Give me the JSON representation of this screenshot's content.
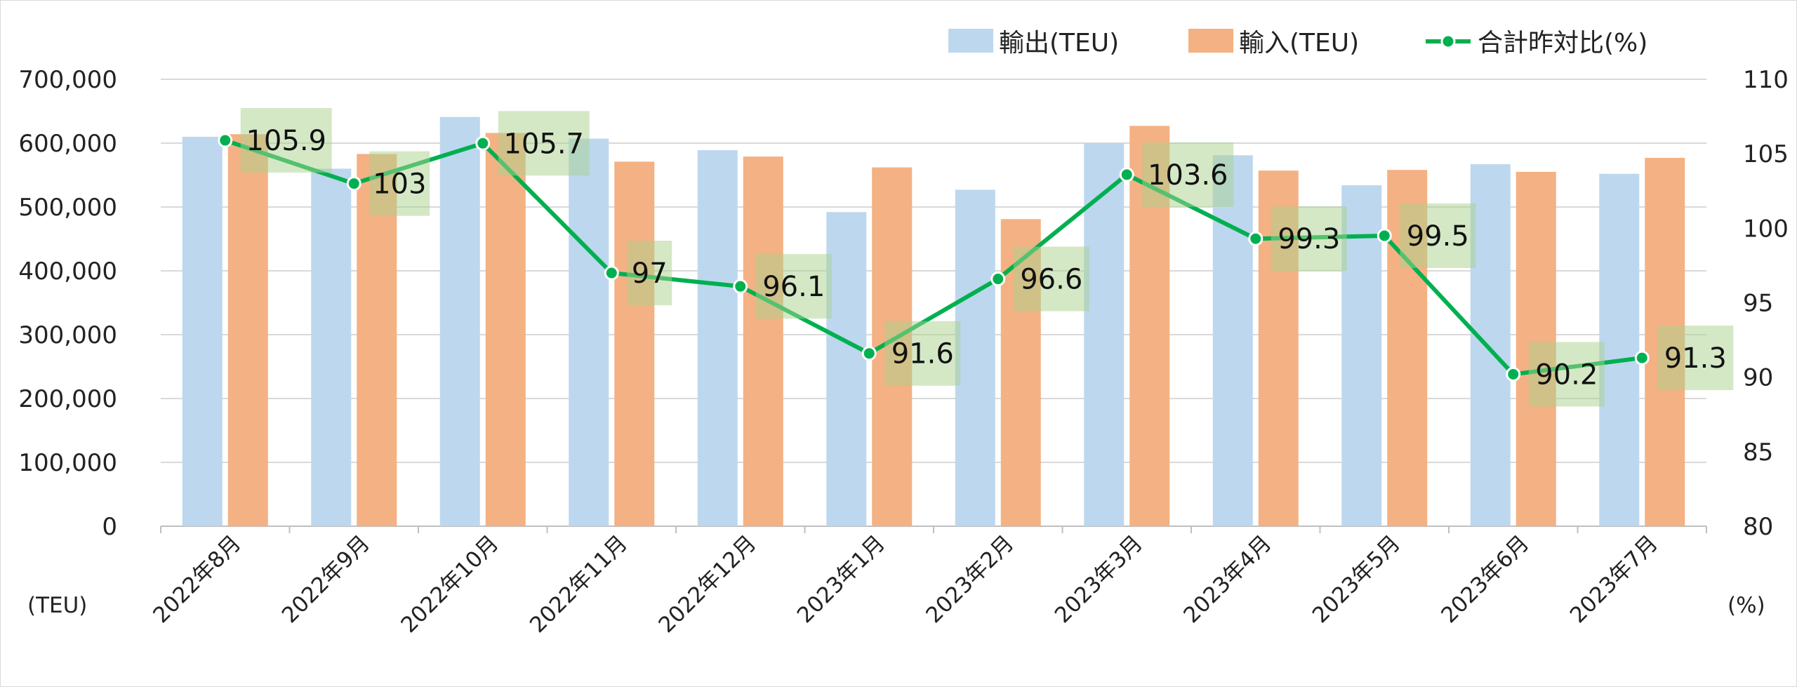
{
  "chart_data": {
    "type": "bar",
    "categories": [
      "2022年8月",
      "2022年9月",
      "2022年10月",
      "2022年11月",
      "2022年12月",
      "2023年1月",
      "2023年2月",
      "2023年3月",
      "2023年4月",
      "2023年5月",
      "2023年6月",
      "2023年7月"
    ],
    "series": [
      {
        "name": "輸出(TEU)",
        "type": "bar",
        "axis": "left",
        "color": "#bdd7ee",
        "values": [
          610000,
          560000,
          641000,
          607000,
          589000,
          492000,
          527000,
          600000,
          581000,
          534000,
          567000,
          552000
        ]
      },
      {
        "name": "輸入(TEU)",
        "type": "bar",
        "axis": "left",
        "color": "#f4b183",
        "values": [
          614000,
          583000,
          616000,
          571000,
          579000,
          562000,
          481000,
          627000,
          557000,
          558000,
          555000,
          577000
        ]
      },
      {
        "name": "合計昨対比(%)",
        "type": "line",
        "axis": "right",
        "color": "#00b050",
        "values": [
          105.9,
          103,
          105.7,
          97,
          96.1,
          91.6,
          96.6,
          103.6,
          99.3,
          99.5,
          90.2,
          91.3
        ],
        "labels": [
          "105.9",
          "103",
          "105.7",
          "97",
          "96.1",
          "91.6",
          "96.6",
          "103.6",
          "99.3",
          "99.5",
          "90.2",
          "91.3"
        ]
      }
    ],
    "y_left": {
      "range": [
        0,
        700000
      ],
      "ticks": [
        "0",
        "100,000",
        "200,000",
        "300,000",
        "400,000",
        "500,000",
        "600,000",
        "700,000"
      ],
      "unit_label": "(TEU)"
    },
    "y_right": {
      "range": [
        80,
        110
      ],
      "ticks": [
        "80",
        "85",
        "90",
        "95",
        "100",
        "105",
        "110"
      ],
      "unit_label": "(%)"
    },
    "grid": true,
    "legend_position": "top-right",
    "label_box_color": "#a9d18e"
  }
}
